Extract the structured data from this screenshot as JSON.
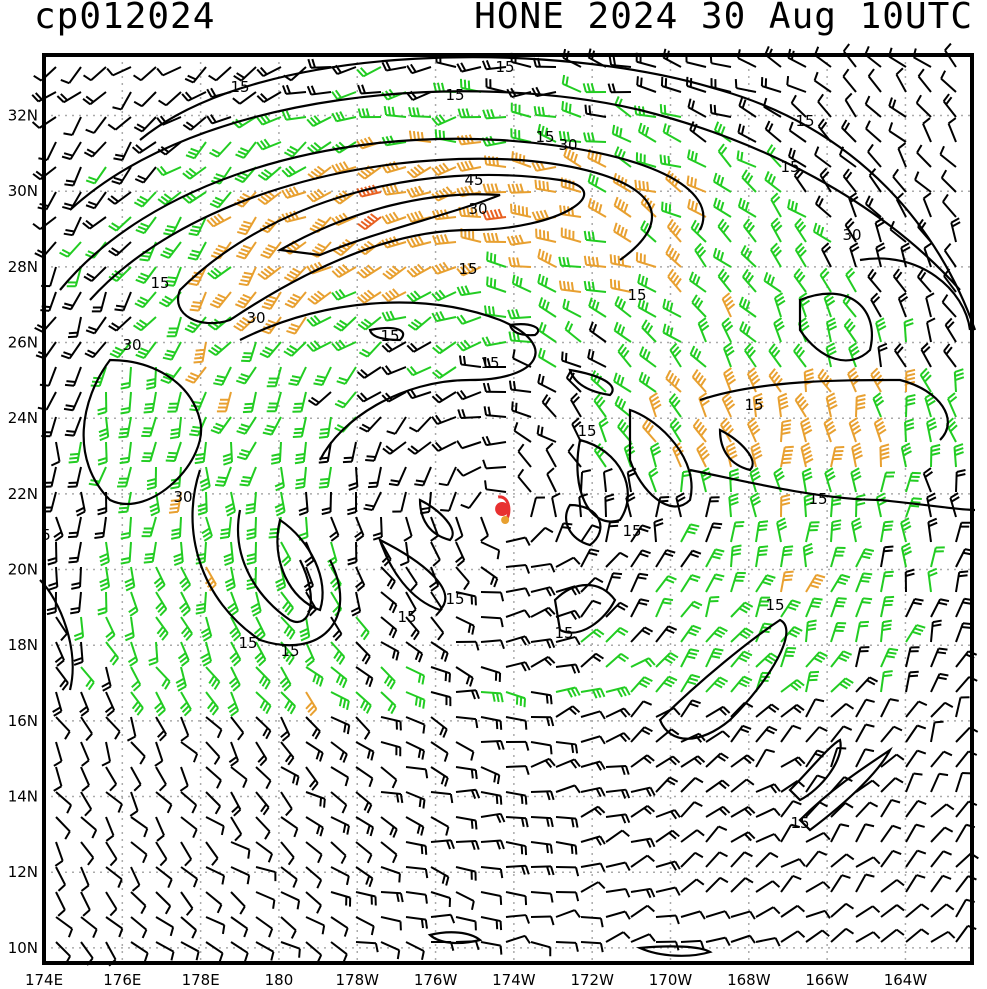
{
  "header": {
    "storm_id": "cp012024",
    "storm_time": "HONE 2024 30 Aug 10UTC"
  },
  "map": {
    "lat_labels": [
      "32N",
      "30N",
      "28N",
      "26N",
      "24N",
      "22N",
      "20N",
      "18N",
      "16N",
      "14N",
      "12N",
      "10N"
    ],
    "lon_labels": [
      "174E",
      "176E",
      "178E",
      "180",
      "178W",
      "176W",
      "174W",
      "172W",
      "170W",
      "168W",
      "166W",
      "164W"
    ],
    "contour_levels_kt": [
      "15",
      "30",
      "45"
    ],
    "contour_labels": [
      "15",
      "15",
      "15",
      "15",
      "15",
      "15",
      "15",
      "15",
      "15",
      "15",
      "15",
      "15",
      "15",
      "15",
      "15",
      "15",
      "15",
      "15",
      "15",
      "15",
      "15",
      "30",
      "30",
      "30",
      "30",
      "30",
      "45",
      "5"
    ],
    "center": {
      "lat": 21.6,
      "lon": -174.3
    },
    "colors": {
      "barb_weak": "#000000",
      "barb_mod": "#22cc22",
      "barb_strong": "#e8a030",
      "barb_extreme": "#e86020",
      "center": "#e83030",
      "grid": "#aaaaaa"
    }
  }
}
